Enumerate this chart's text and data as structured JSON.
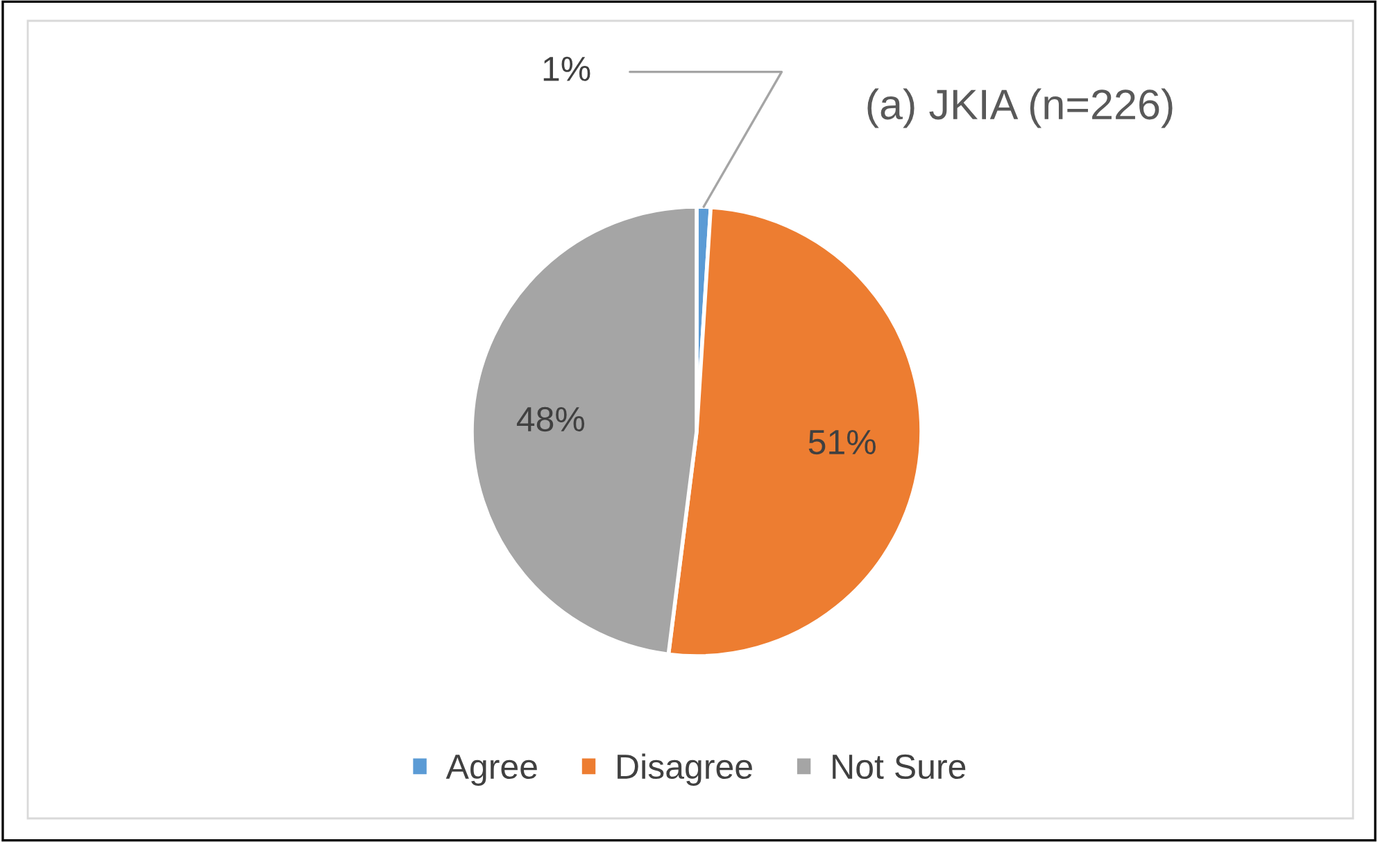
{
  "chart_data": {
    "type": "pie",
    "title": "(a) JKIA (n=226)",
    "categories": [
      "Agree",
      "Disagree",
      "Not Sure"
    ],
    "values": [
      1,
      51,
      48
    ],
    "colors": [
      "#5b9bd5",
      "#ed7d31",
      "#a5a5a5"
    ],
    "value_labels": [
      "1%",
      "51%",
      "48%"
    ],
    "legend": "bottom"
  }
}
